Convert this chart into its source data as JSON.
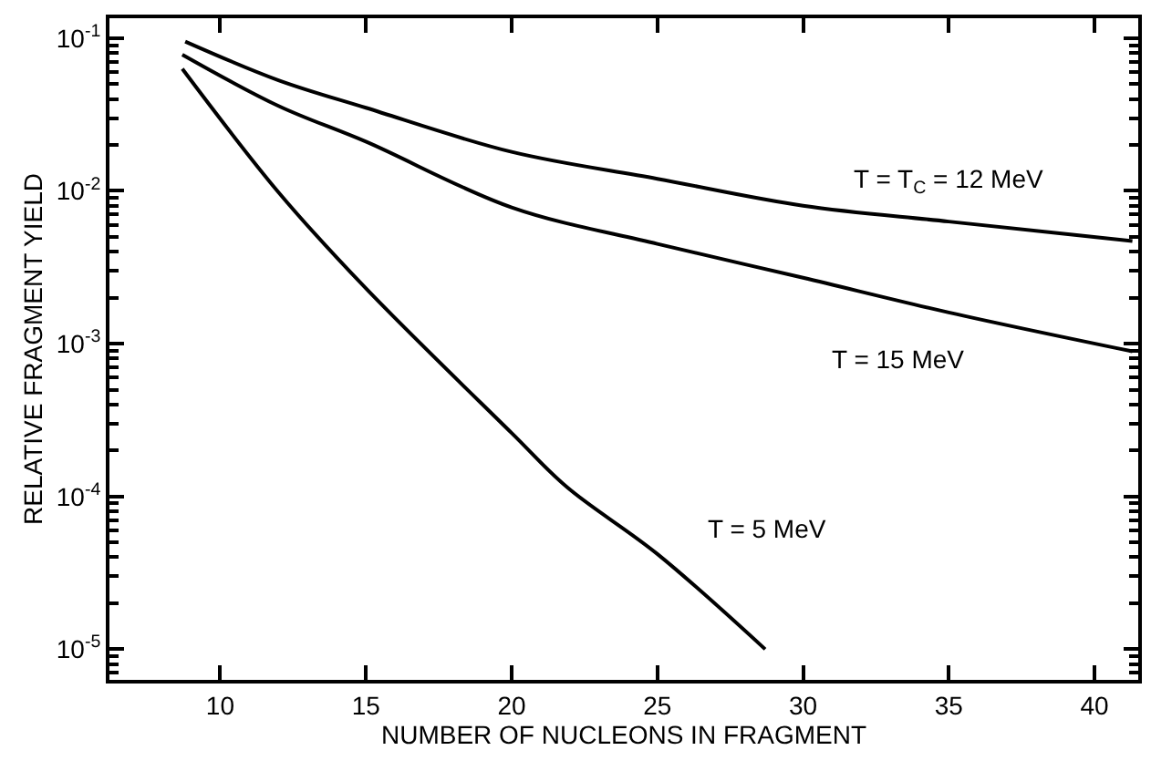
{
  "chart_data": {
    "type": "line",
    "xlabel": "NUMBER OF NUCLEONS IN FRAGMENT",
    "ylabel": "RELATIVE FRAGMENT YIELD",
    "log": "y",
    "xlim": [
      6.2,
      41.5
    ],
    "xticks": [
      10,
      15,
      20,
      25,
      30,
      35,
      40
    ],
    "ylim": [
      6.3e-06,
      0.135
    ],
    "yticks": [
      {
        "value": 0.1,
        "label": "10$^{-1}$"
      },
      {
        "value": 0.01,
        "label": "10$^{-2}$"
      },
      {
        "value": 0.001,
        "label": "10$^{-3}$"
      },
      {
        "value": 0.0001,
        "label": "10$^{-4}$"
      },
      {
        "value": 1e-05,
        "label": "10$^{-5}$"
      }
    ],
    "marker": "none",
    "line_style": "solid",
    "series": [
      {
        "name": "T = T$_{C}$ = 12 MeV",
        "color": "#000000",
        "x": [
          8.8,
          12,
          15,
          20,
          25,
          30,
          35,
          41.3
        ],
        "values": [
          0.095,
          0.053,
          0.035,
          0.018,
          0.012,
          0.008,
          0.0063,
          0.0047
        ]
      },
      {
        "name": "T = 15 MeV",
        "color": "#000000",
        "x": [
          8.7,
          12,
          15,
          20,
          25,
          30,
          35,
          41.3
        ],
        "values": [
          0.078,
          0.036,
          0.021,
          0.0078,
          0.0045,
          0.0027,
          0.0016,
          0.00089
        ]
      },
      {
        "name": "T = 5 MeV",
        "color": "#000000",
        "x": [
          8.7,
          12,
          15,
          20,
          21.9,
          25,
          28.7
        ],
        "values": [
          0.063,
          0.0098,
          0.0023,
          0.00026,
          0.000115,
          4.2e-05,
          1e-05
        ]
      }
    ]
  }
}
